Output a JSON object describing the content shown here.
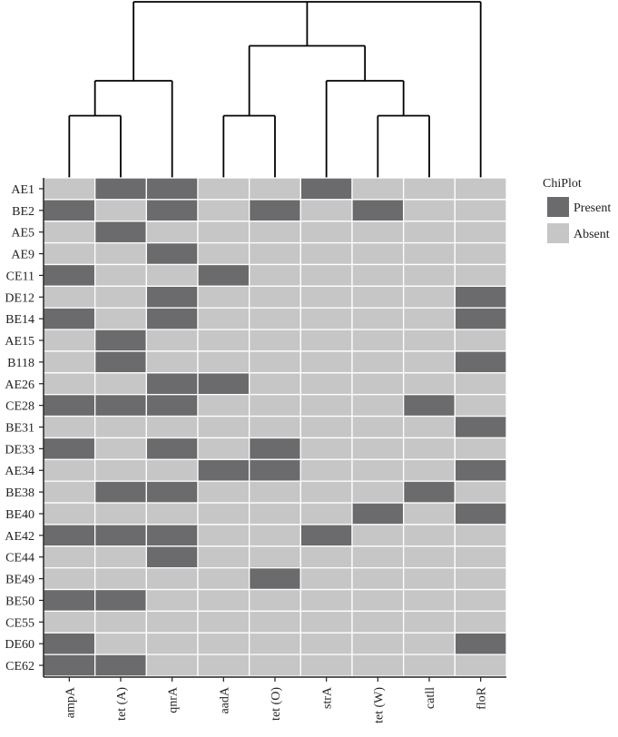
{
  "chart_data": {
    "type": "heatmap",
    "legend": {
      "title": "ChiPlot",
      "items": [
        {
          "label": "Present",
          "value": 1,
          "color": "#6b6b6d"
        },
        {
          "label": "Absent",
          "value": 0,
          "color": "#c6c6c6"
        }
      ],
      "placement": "right"
    },
    "columns": [
      "ampA",
      "tet (A)",
      "qnrA",
      "aadA",
      "tet (O)",
      "strA",
      "tet (W)",
      "catll",
      "floR"
    ],
    "rows": [
      "AE1",
      "BE2",
      "AE5",
      "AE9",
      "CE11",
      "DE12",
      "BE14",
      "AE15",
      "B118",
      "AE26",
      "CE28",
      "BE31",
      "DE33",
      "AE34",
      "BE38",
      "BE40",
      "AE42",
      "CE44",
      "BE49",
      "BE50",
      "CE55",
      "DE60",
      "CE62"
    ],
    "matrix": [
      [
        0,
        1,
        1,
        0,
        0,
        1,
        0,
        0,
        0
      ],
      [
        1,
        0,
        1,
        0,
        1,
        0,
        1,
        0,
        0
      ],
      [
        0,
        1,
        0,
        0,
        0,
        0,
        0,
        0,
        0
      ],
      [
        0,
        0,
        1,
        0,
        0,
        0,
        0,
        0,
        0
      ],
      [
        1,
        0,
        0,
        1,
        0,
        0,
        0,
        0,
        0
      ],
      [
        0,
        0,
        1,
        0,
        0,
        0,
        0,
        0,
        1
      ],
      [
        1,
        0,
        1,
        0,
        0,
        0,
        0,
        0,
        1
      ],
      [
        0,
        1,
        0,
        0,
        0,
        0,
        0,
        0,
        0
      ],
      [
        0,
        1,
        0,
        0,
        0,
        0,
        0,
        0,
        1
      ],
      [
        0,
        0,
        1,
        1,
        0,
        0,
        0,
        0,
        0
      ],
      [
        1,
        1,
        1,
        0,
        0,
        0,
        0,
        1,
        0
      ],
      [
        0,
        0,
        0,
        0,
        0,
        0,
        0,
        0,
        1
      ],
      [
        1,
        0,
        1,
        0,
        1,
        0,
        0,
        0,
        0
      ],
      [
        0,
        0,
        0,
        1,
        1,
        0,
        0,
        0,
        1
      ],
      [
        0,
        1,
        1,
        0,
        0,
        0,
        0,
        1,
        0
      ],
      [
        0,
        0,
        0,
        0,
        0,
        0,
        1,
        0,
        1
      ],
      [
        1,
        1,
        1,
        0,
        0,
        1,
        0,
        0,
        0
      ],
      [
        0,
        0,
        1,
        0,
        0,
        0,
        0,
        0,
        0
      ],
      [
        0,
        0,
        0,
        0,
        1,
        0,
        0,
        0,
        0
      ],
      [
        1,
        1,
        0,
        0,
        0,
        0,
        0,
        0,
        0
      ],
      [
        0,
        0,
        0,
        0,
        0,
        0,
        0,
        0,
        0
      ],
      [
        1,
        0,
        0,
        0,
        0,
        0,
        0,
        0,
        1
      ],
      [
        1,
        1,
        0,
        0,
        0,
        0,
        0,
        0,
        0
      ]
    ],
    "dendrogram": {
      "orientation": "top",
      "tree": [
        [
          [
            0,
            1
          ],
          2
        ],
        [
          [
            3,
            4
          ],
          [
            5,
            [
              6,
              7
            ]
          ]
        ],
        8
      ]
    },
    "grid": true
  }
}
